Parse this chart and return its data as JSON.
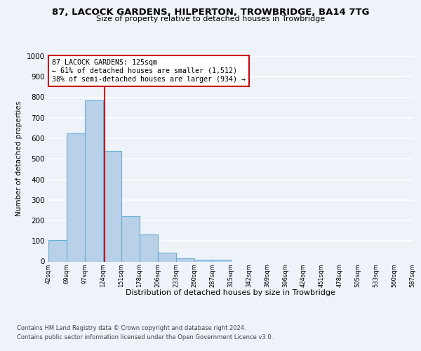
{
  "title": "87, LACOCK GARDENS, HILPERTON, TROWBRIDGE, BA14 7TG",
  "subtitle": "Size of property relative to detached houses in Trowbridge",
  "xlabel": "Distribution of detached houses by size in Trowbridge",
  "ylabel": "Number of detached properties",
  "bar_color": "#b8d0e8",
  "bar_edge_color": "#6aaed6",
  "bar_values": [
    103,
    625,
    785,
    540,
    222,
    133,
    42,
    16,
    10,
    10,
    0,
    0,
    0,
    0,
    0,
    0,
    0,
    0,
    0,
    0
  ],
  "categories": [
    "42sqm",
    "69sqm",
    "97sqm",
    "124sqm",
    "151sqm",
    "178sqm",
    "206sqm",
    "233sqm",
    "260sqm",
    "287sqm",
    "315sqm",
    "342sqm",
    "369sqm",
    "396sqm",
    "424sqm",
    "451sqm",
    "478sqm",
    "505sqm",
    "533sqm",
    "560sqm",
    "587sqm"
  ],
  "ylim": [
    0,
    1000
  ],
  "yticks": [
    0,
    100,
    200,
    300,
    400,
    500,
    600,
    700,
    800,
    900,
    1000
  ],
  "property_label": "87 LACOCK GARDENS: 125sqm",
  "annotation_line1": "← 61% of detached houses are smaller (1,512)",
  "annotation_line2": "38% of semi-detached houses are larger (934) →",
  "vline_x": 3.07,
  "vline_color": "#cc0000",
  "box_color": "#cc0000",
  "footer1": "Contains HM Land Registry data © Crown copyright and database right 2024.",
  "footer2": "Contains public sector information licensed under the Open Government Licence v3.0.",
  "background_color": "#eef2f9",
  "grid_color": "#ffffff"
}
